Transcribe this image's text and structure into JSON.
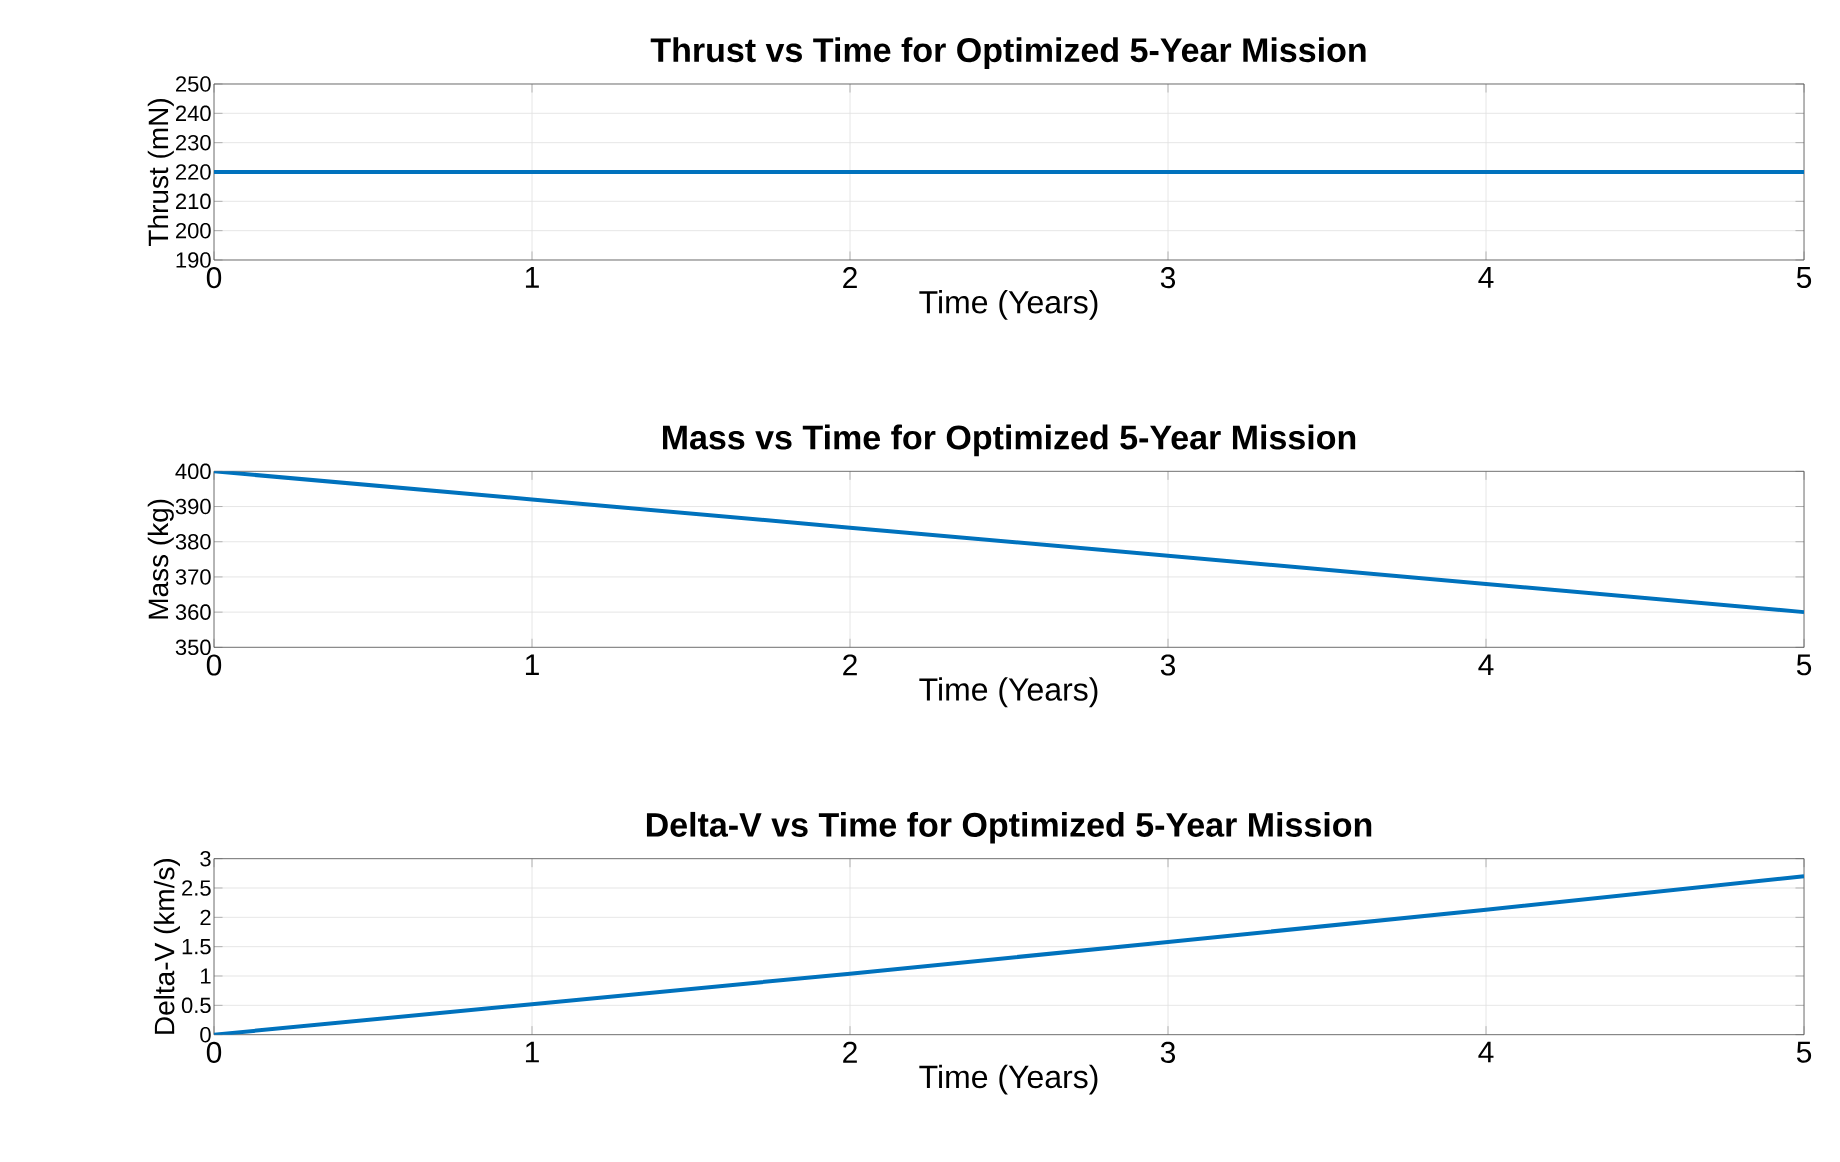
{
  "chart_data": [
    {
      "type": "line",
      "title": "Thrust vs Time for Optimized 5-Year Mission",
      "xlabel": "Time (Years)",
      "ylabel": "Thrust (mN)",
      "x": [
        0,
        5
      ],
      "series": [
        {
          "color": "#0072bd",
          "values": [
            220,
            220
          ]
        }
      ],
      "xlim": [
        0,
        5
      ],
      "ylim": [
        190,
        250
      ],
      "xticks": [
        0,
        1,
        2,
        3,
        4,
        5
      ],
      "yticks": [
        190,
        200,
        210,
        220,
        230,
        240,
        250
      ],
      "grid": true,
      "marker": "none",
      "line_style": "solid"
    },
    {
      "type": "line",
      "title": "Mass vs Time for Optimized 5-Year Mission",
      "xlabel": "Time (Years)",
      "ylabel": "Mass (kg)",
      "x": [
        0,
        1,
        2,
        3,
        4,
        5
      ],
      "series": [
        {
          "color": "#0072bd",
          "values": [
            400,
            392,
            384,
            376,
            368,
            360
          ]
        }
      ],
      "xlim": [
        0,
        5
      ],
      "ylim": [
        350,
        400
      ],
      "xticks": [
        0,
        1,
        2,
        3,
        4,
        5
      ],
      "yticks": [
        350,
        360,
        370,
        380,
        390,
        400
      ],
      "grid": true,
      "marker": "none",
      "line_style": "solid"
    },
    {
      "type": "line",
      "title": "Delta-V vs Time for Optimized 5-Year Mission",
      "xlabel": "Time (Years)",
      "ylabel": "Delta-V (km/s)",
      "x": [
        0,
        1,
        2,
        3,
        4,
        5
      ],
      "series": [
        {
          "color": "#0072bd",
          "values": [
            0,
            0.52,
            1.04,
            1.58,
            2.13,
            2.7
          ]
        }
      ],
      "xlim": [
        0,
        5
      ],
      "ylim": [
        0,
        3
      ],
      "xticks": [
        0,
        1,
        2,
        3,
        4,
        5
      ],
      "yticks": [
        0,
        0.5,
        1,
        1.5,
        2,
        2.5,
        3
      ],
      "grid": true,
      "marker": "none",
      "line_style": "solid"
    }
  ]
}
